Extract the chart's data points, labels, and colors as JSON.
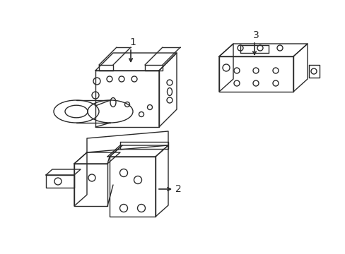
{
  "background_color": "#ffffff",
  "line_color": "#2a2a2a",
  "line_width": 1.0,
  "label_fontsize": 10,
  "fig_width": 4.89,
  "fig_height": 3.6,
  "dpi": 100
}
